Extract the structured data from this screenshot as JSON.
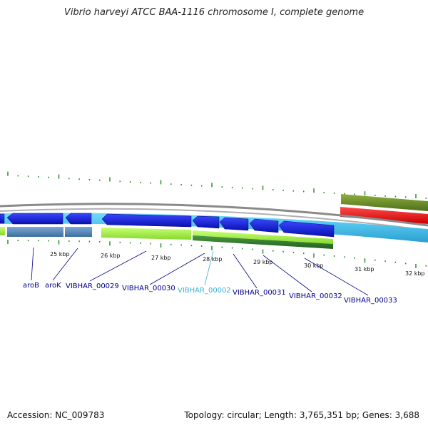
{
  "title": "Vibrio harveyi ATCC BAA-1116 chromosome I, complete genome",
  "footer": {
    "accession": "Accession: NC_009783",
    "topology": "Topology: circular; Length: 3,765,351 bp; Genes: 3,688"
  },
  "ticks": [
    "25 kbp",
    "26 kbp",
    "27 kbp",
    "28 kbp",
    "29 kbp",
    "30 kbp",
    "31 kbp",
    "32 kbp"
  ],
  "gene_labels": [
    {
      "text": "aroB",
      "color": "#00008b"
    },
    {
      "text": "aroK",
      "color": "#00008b"
    },
    {
      "text": "VIBHAR_00029",
      "color": "#00008b"
    },
    {
      "text": "VIBHAR_00030",
      "color": "#00008b"
    },
    {
      "text": "VIBHAR_00002",
      "color": "#3ab0d8"
    },
    {
      "text": "VIBHAR_00031",
      "color": "#00008b"
    },
    {
      "text": "VIBHAR_00032",
      "color": "#00008b"
    },
    {
      "text": "VIBHAR_00033",
      "color": "#00008b"
    }
  ],
  "colors": {
    "cds": "#0a14d8",
    "gene": "#3cc8f0",
    "rrna": "#e81010",
    "misc": "#6b8e23",
    "lime": "#a8f050",
    "darkgreen": "#2e7d32",
    "steel": "#4a82b4",
    "tick": "#2f8f2f",
    "backbone": "#808080"
  }
}
